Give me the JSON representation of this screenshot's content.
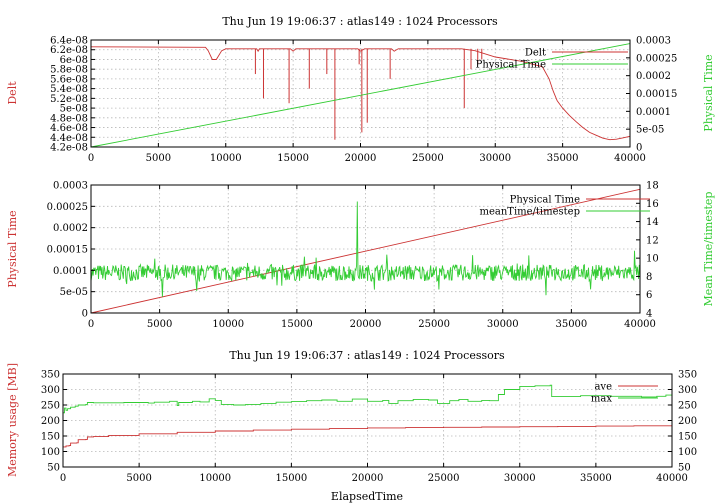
{
  "chart_data": [
    {
      "type": "line",
      "title": "Thu Jun 19 19:06:37 : atlas149 : 1024 Processors",
      "xlabel": "",
      "ylabel": "Delt",
      "y2label": "Physical Time",
      "xlim": [
        0,
        40000
      ],
      "ylim": [
        4.2e-08,
        6.4e-08
      ],
      "y2lim": [
        0,
        0.0003
      ],
      "xticks": [
        0,
        5000,
        10000,
        15000,
        20000,
        25000,
        30000,
        35000,
        40000
      ],
      "xtick_labels": [
        "0",
        "5000",
        "10000",
        "15000",
        "20000",
        "25000",
        "30000",
        "35000",
        "40000"
      ],
      "yticks": [
        4.2e-08,
        4.4e-08,
        4.6e-08,
        4.8e-08,
        5e-08,
        5.2e-08,
        5.4e-08,
        5.6e-08,
        5.8e-08,
        6e-08,
        6.2e-08,
        6.4e-08
      ],
      "ytick_labels": [
        "4.2e-08",
        "4.4e-08",
        "4.6e-08",
        "4.8e-08",
        "5e-08",
        "5.2e-08",
        "5.4e-08",
        "5.6e-08",
        "5.8e-08",
        "6e-08",
        "6.2e-08",
        "6.4e-08"
      ],
      "y2ticks": [
        0,
        5e-05,
        0.0001,
        0.00015,
        0.0002,
        0.00025,
        0.0003
      ],
      "y2tick_labels": [
        "0",
        "5e-05",
        "0.0001",
        "0.00015",
        "0.0002",
        "0.00025",
        "0.0003"
      ],
      "grid": true,
      "legend": "top-right",
      "series": [
        {
          "name": "Delt",
          "axis": "y",
          "color": "#cc3333",
          "x": [
            0,
            8500,
            8700,
            9000,
            9300,
            9700,
            10000,
            12300,
            12400,
            12500,
            14800,
            15000,
            15200,
            19800,
            20000,
            20300,
            22300,
            22500,
            22800,
            27500,
            28500,
            30000,
            32000,
            33500,
            34000,
            34300,
            34600,
            35000,
            35500,
            36000,
            36500,
            37000,
            37500,
            38000,
            38500,
            39000,
            39500,
            40000
          ],
          "y": [
            6.26e-08,
            6.25e-08,
            6.18e-08,
            6e-08,
            6e-08,
            6.18e-08,
            6.22e-08,
            6.22e-08,
            6.17e-08,
            6.22e-08,
            6.22e-08,
            6.17e-08,
            6.22e-08,
            6.22e-08,
            6.17e-08,
            6.22e-08,
            6.22e-08,
            6.17e-08,
            6.22e-08,
            6.22e-08,
            6.18e-08,
            6.05e-08,
            5.96e-08,
            5.85e-08,
            5.6e-08,
            5.35e-08,
            5.15e-08,
            5e-08,
            4.85e-08,
            4.72e-08,
            4.6e-08,
            4.5e-08,
            4.44e-08,
            4.38e-08,
            4.35e-08,
            4.36e-08,
            4.39e-08,
            4.42e-08
          ],
          "spikes": [
            {
              "x": 12200,
              "y": 5.7e-08
            },
            {
              "x": 12800,
              "y": 5.2e-08
            },
            {
              "x": 14700,
              "y": 5.1e-08
            },
            {
              "x": 16200,
              "y": 5.4e-08
            },
            {
              "x": 17500,
              "y": 5.7e-08
            },
            {
              "x": 18100,
              "y": 4.35e-08
            },
            {
              "x": 19900,
              "y": 5.9e-08
            },
            {
              "x": 20100,
              "y": 4.5e-08
            },
            {
              "x": 20500,
              "y": 4.7e-08
            },
            {
              "x": 22200,
              "y": 5.6e-08
            },
            {
              "x": 27700,
              "y": 5e-08
            },
            {
              "x": 28200,
              "y": 5.8e-08
            },
            {
              "x": 28700,
              "y": 5.9e-08
            },
            {
              "x": 29000,
              "y": 6e-08
            }
          ]
        },
        {
          "name": "Physical Time",
          "axis": "y2",
          "color": "#33cc33",
          "x": [
            0,
            40000
          ],
          "y": [
            0,
            0.00029
          ]
        }
      ]
    },
    {
      "type": "line",
      "title": "",
      "xlabel": "",
      "ylabel": "Physical Time",
      "y2label": "Mean Time/timestep",
      "xlim": [
        0,
        40000
      ],
      "ylim": [
        0,
        0.0003
      ],
      "y2lim": [
        4,
        18
      ],
      "xticks": [
        0,
        5000,
        10000,
        15000,
        20000,
        25000,
        30000,
        35000,
        40000
      ],
      "xtick_labels": [
        "0",
        "5000",
        "10000",
        "15000",
        "20000",
        "25000",
        "30000",
        "35000",
        "40000"
      ],
      "yticks": [
        0,
        5e-05,
        0.0001,
        0.00015,
        0.0002,
        0.00025,
        0.0003
      ],
      "ytick_labels": [
        "0",
        "5e-05",
        "0.0001",
        "0.00015",
        "0.0002",
        "0.00025",
        "0.0003"
      ],
      "y2ticks": [
        4,
        6,
        8,
        10,
        12,
        14,
        16,
        18
      ],
      "y2tick_labels": [
        "4",
        "6",
        "8",
        "10",
        "12",
        "14",
        "16",
        "18"
      ],
      "grid": true,
      "legend": "top-right",
      "series": [
        {
          "name": "Physical Time",
          "axis": "y",
          "color": "#cc3333",
          "x": [
            0,
            40000
          ],
          "y": [
            0,
            0.00029
          ]
        },
        {
          "name": "meanTime/timestep",
          "axis": "y2",
          "color": "#33cc33",
          "noisy": true,
          "count": 800,
          "base": 8.4,
          "amplitude": 0.9,
          "spike_prob": 0.03,
          "spike_amplitude": 2.0,
          "spikes": [
            {
              "x": 19400,
              "y": 16.2
            },
            {
              "x": 39600,
              "y": 10.8
            }
          ]
        }
      ]
    },
    {
      "type": "line",
      "title": "Thu Jun 19 19:06:37 : atlas149 : 1024 Processors",
      "xlabel": "ElapsedTime",
      "ylabel": "Memory usage [MB]",
      "y2label": "",
      "xlim": [
        0,
        40000
      ],
      "ylim": [
        50,
        350
      ],
      "y2lim": [
        50,
        350
      ],
      "xticks": [
        0,
        5000,
        10000,
        15000,
        20000,
        25000,
        30000,
        35000,
        40000
      ],
      "xtick_labels": [
        "0",
        "5000",
        "10000",
        "15000",
        "20000",
        "25000",
        "30000",
        "35000",
        "40000"
      ],
      "yticks": [
        50,
        100,
        150,
        200,
        250,
        300,
        350
      ],
      "ytick_labels": [
        "50",
        "100",
        "150",
        "200",
        "250",
        "300",
        "350"
      ],
      "y2ticks": [
        50,
        100,
        150,
        200,
        250,
        300,
        350
      ],
      "y2tick_labels": [
        "50",
        "100",
        "150",
        "200",
        "250",
        "300",
        "350"
      ],
      "grid": true,
      "legend": "top-right",
      "series": [
        {
          "name": "ave",
          "axis": "y",
          "color": "#cc3333",
          "x": [
            0,
            200,
            400,
            500,
            900,
            1000,
            1500,
            1600,
            2000,
            3000,
            5000,
            7500,
            10000,
            12500,
            15000,
            17500,
            20000,
            22500,
            25000,
            27500,
            30000,
            32500,
            35000,
            37500,
            40000
          ],
          "y": [
            115,
            118,
            119,
            127,
            128,
            138,
            139,
            147,
            148,
            152,
            157,
            162,
            166,
            169,
            172,
            174,
            176,
            177,
            178,
            179,
            180,
            181,
            182,
            183,
            184
          ],
          "step": true
        },
        {
          "name": "max",
          "axis": "y",
          "color": "#33cc33",
          "x": [
            0,
            100,
            200,
            300,
            500,
            800,
            1000,
            1500,
            1600,
            2000,
            4000,
            5600,
            6000,
            7000,
            7500,
            7600,
            8500,
            9000,
            9600,
            10000,
            10400,
            11200,
            12000,
            13000,
            14000,
            15000,
            16000,
            17000,
            18000,
            19000,
            20000,
            21000,
            21400,
            22000,
            23000,
            24000,
            24600,
            25400,
            26000,
            26600,
            27500,
            28000,
            28600,
            29000,
            30000,
            31000,
            32000,
            32100,
            34000,
            36000,
            38000,
            39000,
            39600,
            40000
          ],
          "y": [
            225,
            240,
            233,
            238,
            243,
            246,
            250,
            252,
            258,
            257,
            258,
            256,
            259,
            262,
            248,
            258,
            262,
            260,
            270,
            265,
            252,
            250,
            252,
            255,
            259,
            261,
            264,
            266,
            262,
            269,
            262,
            265,
            255,
            264,
            268,
            266,
            255,
            264,
            268,
            262,
            265,
            264,
            284,
            300,
            310,
            312,
            314,
            277,
            280,
            278,
            276,
            278,
            282,
            300
          ],
          "step": true
        }
      ]
    }
  ]
}
